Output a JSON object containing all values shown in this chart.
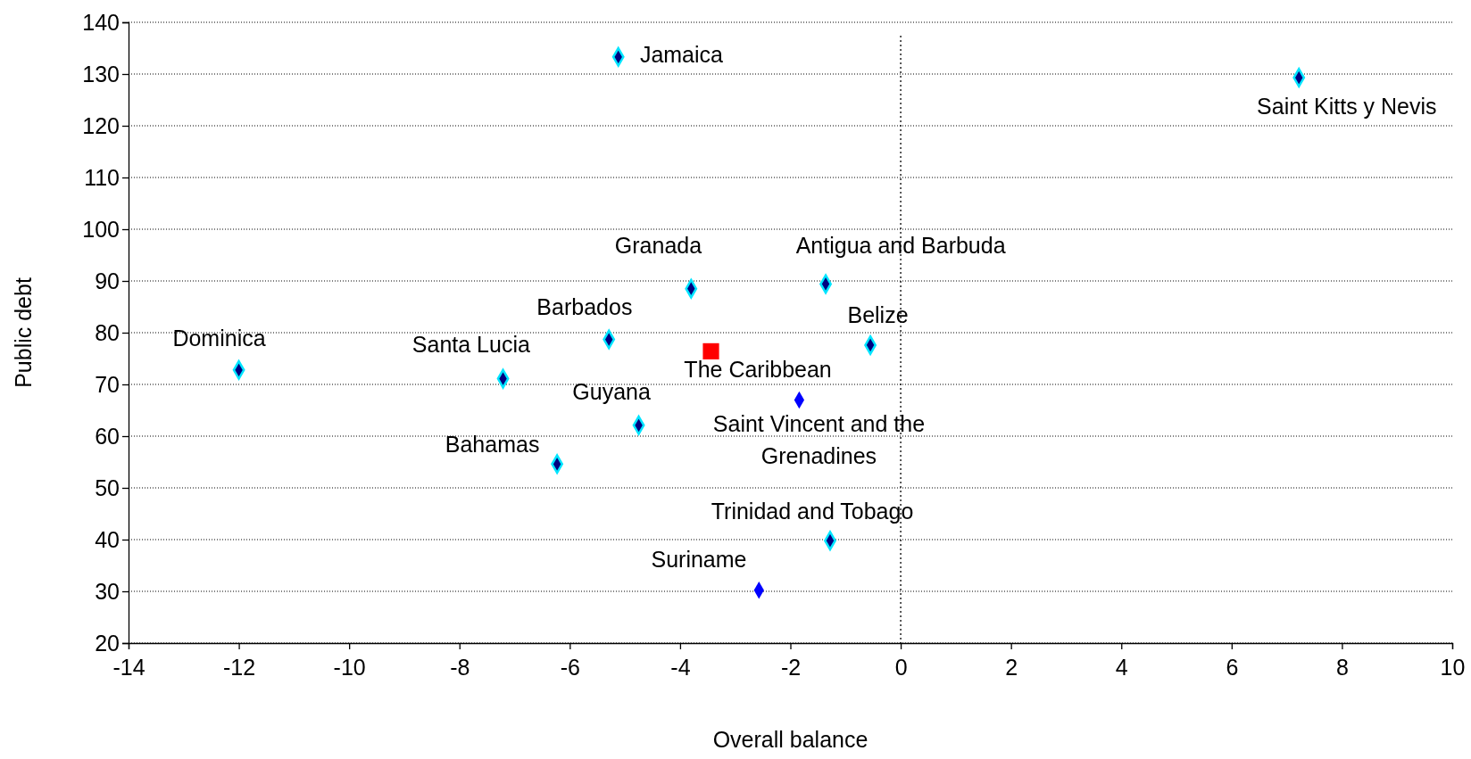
{
  "chart_data": {
    "type": "scatter",
    "xlabel": "Overall balance",
    "ylabel": "Public debt",
    "xlim": [
      -14,
      10
    ],
    "xticks": [
      -14,
      -12,
      -10,
      -8,
      -6,
      -4,
      -2,
      0,
      2,
      4,
      6,
      8,
      10
    ],
    "ylim": [
      20,
      140
    ],
    "yticks": [
      20,
      30,
      40,
      50,
      60,
      70,
      80,
      90,
      100,
      110,
      120,
      130,
      140
    ],
    "grid": "y",
    "marker": "diamond",
    "ref_lines": [
      {
        "axis": "x",
        "value": 0,
        "line_style": "dotted",
        "color": "#000000"
      }
    ],
    "series": [
      {
        "name": "Jamaica",
        "color": "#000080",
        "x": [
          -5.12
        ],
        "values": [
          133.3
        ]
      },
      {
        "name": "Saint Kitts y Nevis",
        "color": "#000080",
        "x": [
          7.22
        ],
        "values": [
          129.3
        ]
      },
      {
        "name": "Granada",
        "color": "#000080",
        "x": [
          -3.8
        ],
        "values": [
          88.5
        ]
      },
      {
        "name": "Antigua and Barbuda",
        "color": "#000080",
        "x": [
          -1.36
        ],
        "values": [
          89.4
        ]
      },
      {
        "name": "Barbados",
        "color": "#000080",
        "x": [
          -5.29
        ],
        "values": [
          78.7
        ]
      },
      {
        "name": "Belize",
        "color": "#000080",
        "x": [
          -0.55
        ],
        "values": [
          77.6
        ]
      },
      {
        "name": "Dominica",
        "color": "#000080",
        "x": [
          -12.0
        ],
        "values": [
          72.8
        ]
      },
      {
        "name": "Santa Lucia",
        "color": "#000080",
        "x": [
          -7.21
        ],
        "values": [
          71.1
        ]
      },
      {
        "name": "The Caribbean",
        "color": "#ff0000",
        "marker": "square",
        "x": [
          -3.44
        ],
        "values": [
          76.4
        ]
      },
      {
        "name": "Guyana",
        "color": "#000080",
        "x": [
          -4.75
        ],
        "values": [
          62.1
        ]
      },
      {
        "name": "Saint Vincent and the Grenadines",
        "color": "#0000ff",
        "x": [
          -1.84
        ],
        "values": [
          67.0
        ]
      },
      {
        "name": "Bahamas",
        "color": "#000080",
        "x": [
          -6.23
        ],
        "values": [
          54.6
        ]
      },
      {
        "name": "Trinidad and Tobago",
        "color": "#000080",
        "x": [
          -1.28
        ],
        "values": [
          39.8
        ]
      },
      {
        "name": "Suriname",
        "color": "#0000ff",
        "x": [
          -2.57
        ],
        "values": [
          30.2
        ]
      }
    ]
  }
}
